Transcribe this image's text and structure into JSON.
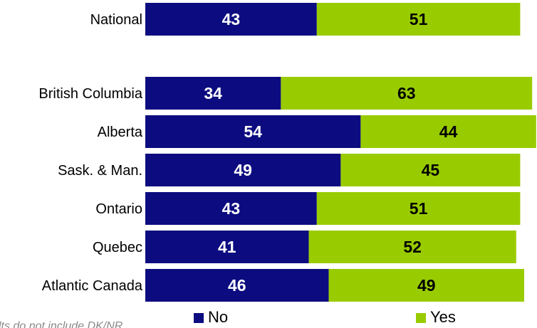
{
  "chart_data": {
    "type": "bar",
    "orientation": "horizontal",
    "stacked": true,
    "categories": [
      "National",
      "British Columbia",
      "Alberta",
      "Sask. & Man.",
      "Ontario",
      "Quebec",
      "Atlantic Canada"
    ],
    "series": [
      {
        "name": "No",
        "values": [
          43,
          34,
          54,
          49,
          43,
          41,
          46
        ],
        "color": "#0c0c80",
        "label_color": "#ffffff"
      },
      {
        "name": "Yes",
        "values": [
          51,
          63,
          44,
          45,
          51,
          52,
          49
        ],
        "color": "#99cc00",
        "label_color": "#000000"
      }
    ],
    "xlim": [
      0,
      100
    ],
    "grid": false,
    "legend": "bottom",
    "note": "lts do not include DK/NR"
  }
}
